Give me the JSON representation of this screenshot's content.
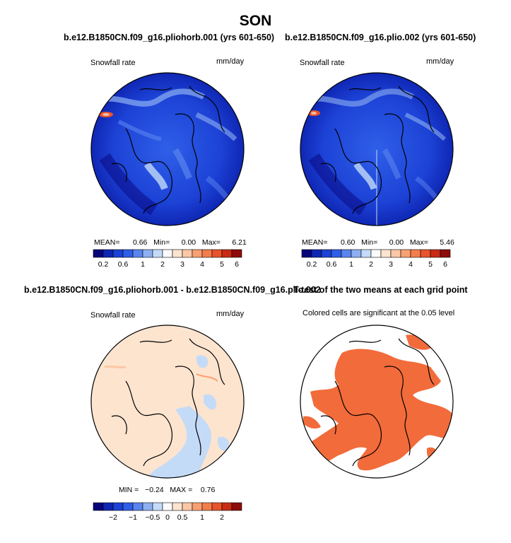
{
  "figure": {
    "title": "SON"
  },
  "colors": {
    "abs_scale": [
      "#07047c",
      "#0f26b3",
      "#1c42d6",
      "#2f5fe8",
      "#5a84ee",
      "#8db0f2",
      "#c4dbf8",
      "#fbfbfb",
      "#fde4cf",
      "#fcc7a6",
      "#f9a072",
      "#f47d4c",
      "#e8542c",
      "#c92b16",
      "#8d0c0a"
    ],
    "diff_scale": [
      "#07047c",
      "#0f26b3",
      "#1c42d6",
      "#2f5fe8",
      "#5a84ee",
      "#8db0f2",
      "#c4dbf8",
      "#fbfbfb",
      "#fde4cf",
      "#fcc7a6",
      "#f9a072",
      "#f47d4c",
      "#e8542c",
      "#c92b16",
      "#8d0c0a"
    ],
    "significance": "#f26b3a"
  },
  "panels": [
    {
      "title": "b.e12.B1850CN.f09_g16.pliohorb.001 (yrs 601-650)",
      "left_label": "Snowfall rate",
      "right_label": "mm/day",
      "stats": {
        "mean_label": "MEAN=",
        "mean": "0.66",
        "min_label": "Min=",
        "min": "0.00",
        "max_label": "Max=",
        "max": "6.21"
      },
      "colorbar_ticks": [
        "0.2",
        "0.6",
        "1",
        "2",
        "3",
        "4",
        "5",
        "6"
      ]
    },
    {
      "title": "b.e12.B1850CN.f09_g16.plio.002 (yrs 601-650)",
      "left_label": "Snowfall rate",
      "right_label": "mm/day",
      "stats": {
        "mean_label": "MEAN=",
        "mean": "0.60",
        "min_label": "Min=",
        "min": "0.00",
        "max_label": "Max=",
        "max": "5.46"
      },
      "colorbar_ticks": [
        "0.2",
        "0.6",
        "1",
        "2",
        "3",
        "4",
        "5",
        "6"
      ]
    },
    {
      "title": "b.e12.B1850CN.f09_g16.pliohorb.001 - b.e12.B1850CN.f09_g16.plio.002",
      "left_label": "Snowfall rate",
      "right_label": "mm/day",
      "stats": {
        "min_label": "MIN =",
        "min": "−0.24",
        "max_label": "MAX =",
        "max": "0.76"
      },
      "colorbar_ticks": [
        "−2",
        "−1",
        "−0.5",
        "0",
        "0.5",
        "1",
        "2"
      ]
    },
    {
      "title": "T-test of the two means at each grid point",
      "subtitle": "Colored cells are significant at the 0.05 level"
    }
  ],
  "chart_data": [
    {
      "type": "heatmap",
      "title": "b.e12.B1850CN.f09_g16.pliohorb.001 (yrs 601-650)",
      "variable": "Snowfall rate",
      "units": "mm/day",
      "projection": "north polar stereographic",
      "mean": 0.66,
      "min": 0.0,
      "max": 6.21,
      "levels": [
        0.2,
        0.6,
        1,
        2,
        3,
        4,
        5,
        6
      ]
    },
    {
      "type": "heatmap",
      "title": "b.e12.B1850CN.f09_g16.plio.002 (yrs 601-650)",
      "variable": "Snowfall rate",
      "units": "mm/day",
      "projection": "north polar stereographic",
      "mean": 0.6,
      "min": 0.0,
      "max": 5.46,
      "levels": [
        0.2,
        0.6,
        1,
        2,
        3,
        4,
        5,
        6
      ]
    },
    {
      "type": "heatmap",
      "title": "b.e12.B1850CN.f09_g16.pliohorb.001 - b.e12.B1850CN.f09_g16.plio.002",
      "variable": "Snowfall rate",
      "units": "mm/day",
      "projection": "north polar stereographic",
      "min": -0.24,
      "max": 0.76,
      "levels": [
        -2,
        -1,
        -0.5,
        0,
        0.5,
        1,
        2
      ]
    },
    {
      "type": "heatmap",
      "title": "T-test of the two means at each grid point",
      "subtitle": "Colored cells are significant at the 0.05 level",
      "projection": "north polar stereographic"
    }
  ]
}
